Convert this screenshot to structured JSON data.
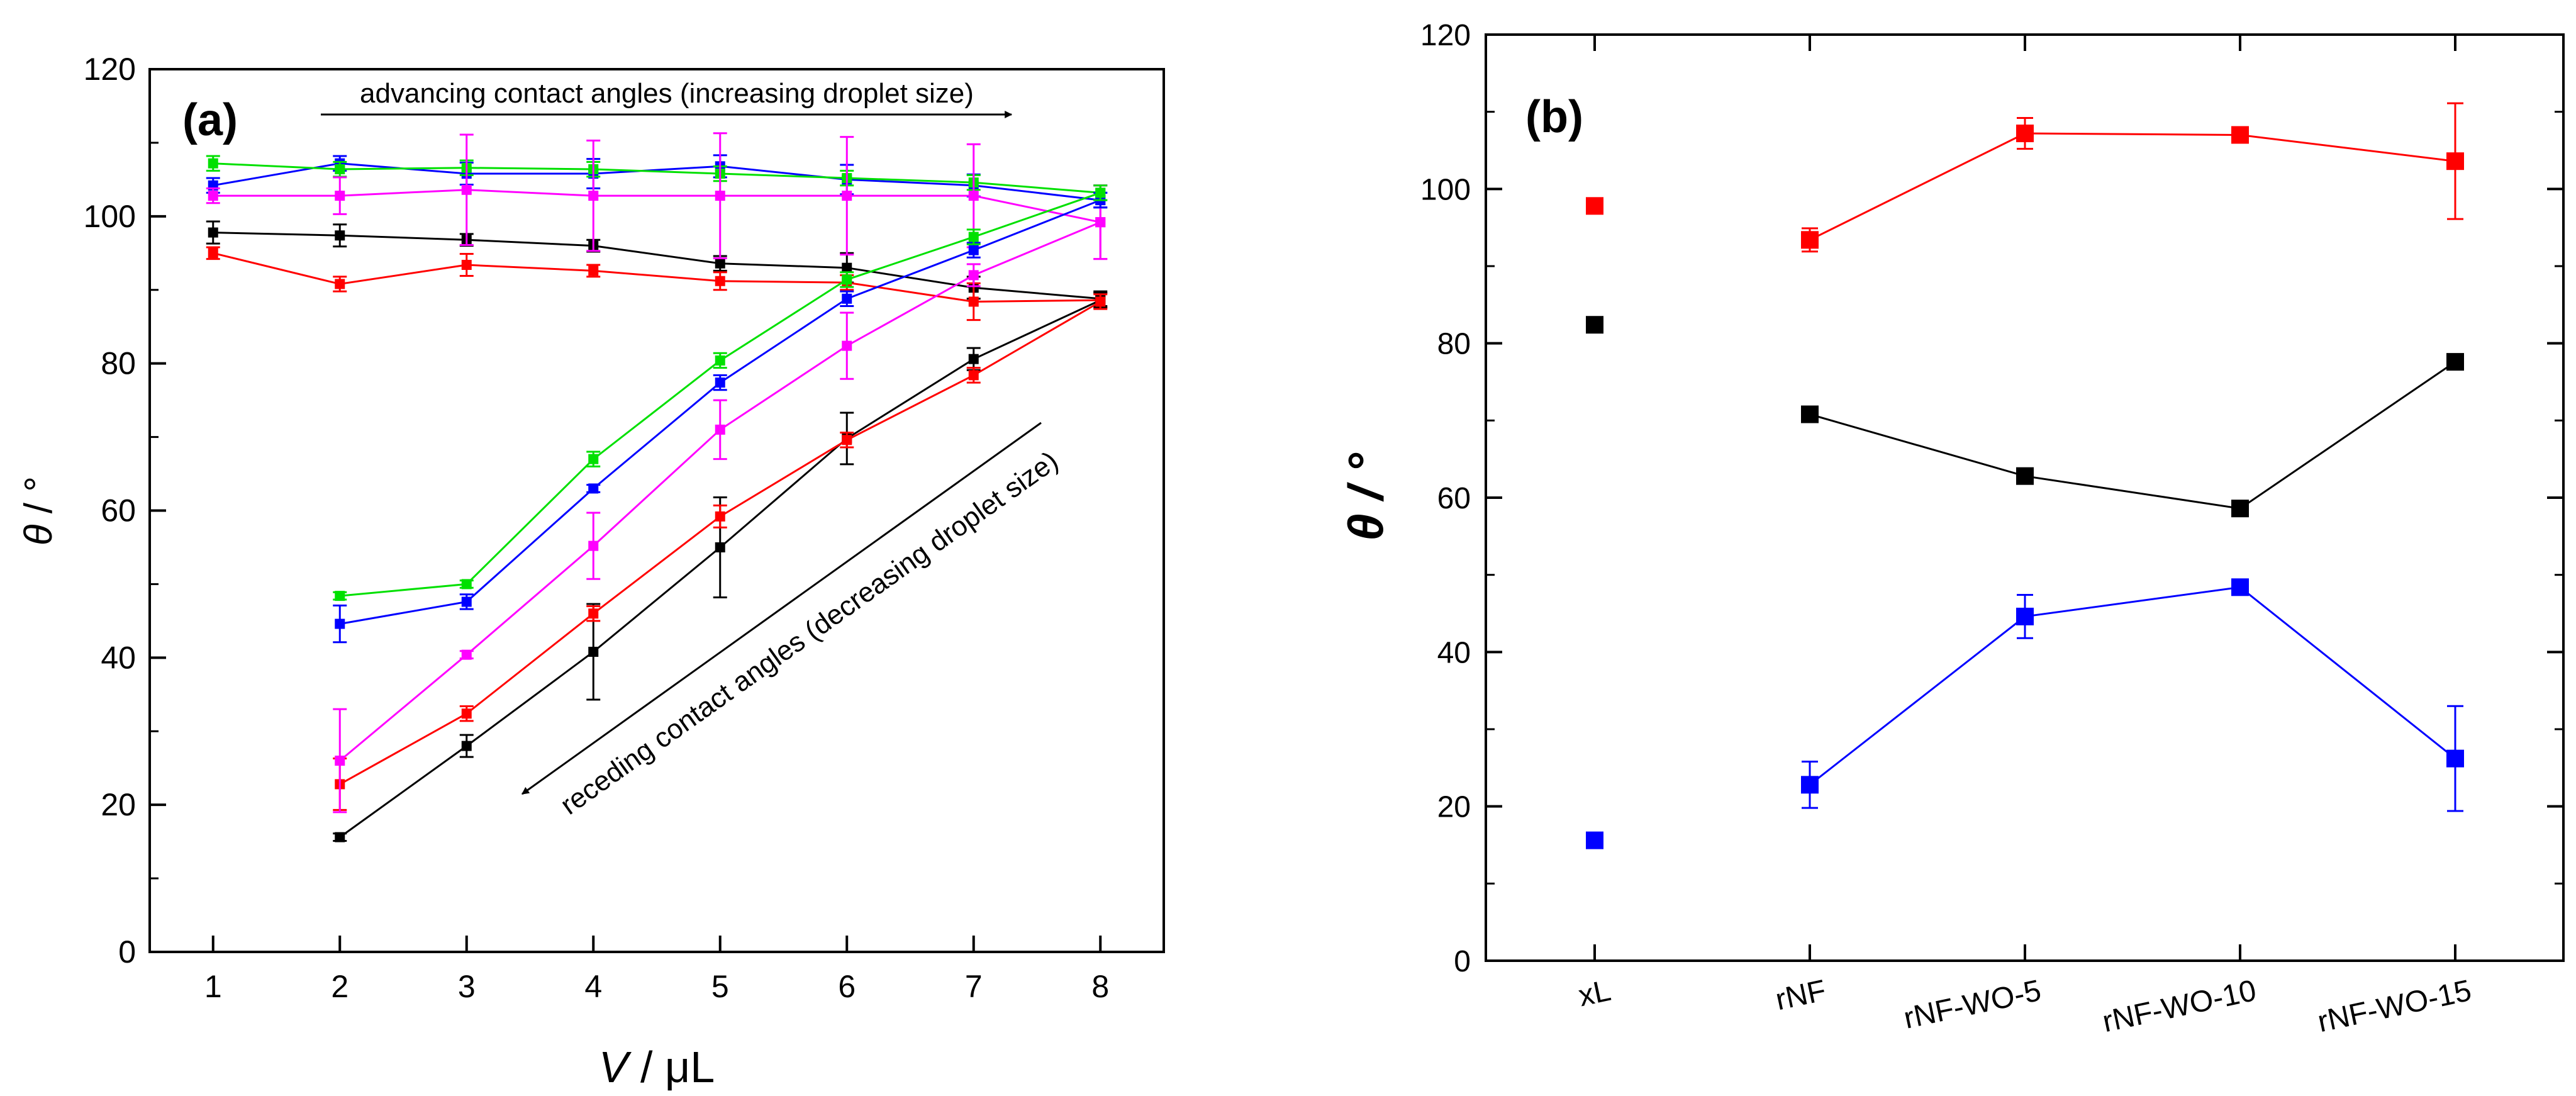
{
  "chart_data": [
    {
      "panel": "a",
      "type": "line",
      "panel_label": "(a)",
      "title": "",
      "xlabel_italic": "V",
      "xlabel_rest": " / μL",
      "ylabel_italic": "θ",
      "ylabel_rest": " / °",
      "xlim": [
        0.5,
        8.5
      ],
      "ylim": [
        0,
        120
      ],
      "x_ticks": [
        "1",
        "2",
        "3",
        "4",
        "5",
        "6",
        "7",
        "8"
      ],
      "y_ticks": [
        "0",
        "20",
        "40",
        "60",
        "80",
        "100",
        "120"
      ],
      "grid": false,
      "annotations": {
        "advancing": "advancing contact angles (increasing droplet size)",
        "receding": "receding contact angles (decreasing droplet size)"
      },
      "series": [
        {
          "name": "black advancing",
          "color": "#000000",
          "x": [
            1,
            2,
            3,
            4,
            5,
            6,
            7,
            8
          ],
          "values": [
            97.8,
            97.4,
            96.8,
            96.0,
            93.6,
            93.0,
            90.3,
            88.8
          ],
          "err": [
            1.5,
            1.5,
            0.8,
            0.8,
            1.0,
            2.0,
            1.5,
            1.0
          ]
        },
        {
          "name": "red advancing",
          "color": "#ff0000",
          "x": [
            1,
            2,
            3,
            4,
            5,
            6,
            7,
            8
          ],
          "values": [
            95.0,
            90.8,
            93.4,
            92.6,
            91.2,
            91.0,
            88.4,
            88.6
          ],
          "err": [
            0.8,
            1.0,
            1.5,
            0.8,
            1.2,
            1.0,
            2.5,
            1.0
          ]
        },
        {
          "name": "blue advancing",
          "color": "#0000ff",
          "x": [
            1,
            2,
            3,
            4,
            5,
            6,
            7,
            8
          ],
          "values": [
            104.2,
            107.2,
            105.8,
            105.8,
            106.8,
            105.0,
            104.2,
            102.2
          ],
          "err": [
            1.0,
            1.0,
            1.5,
            2.0,
            1.5,
            2.0,
            1.5,
            1.0
          ]
        },
        {
          "name": "green advancing",
          "color": "#00e000",
          "x": [
            1,
            2,
            3,
            4,
            5,
            6,
            7,
            8
          ],
          "values": [
            107.2,
            106.4,
            106.6,
            106.4,
            105.8,
            105.2,
            104.6,
            103.2
          ],
          "err": [
            1.0,
            1.0,
            1.0,
            1.0,
            1.0,
            1.0,
            1.0,
            1.0
          ]
        },
        {
          "name": "magenta advancing",
          "color": "#ff00ff",
          "x": [
            1,
            2,
            3,
            4,
            5,
            6,
            7,
            8
          ],
          "values": [
            102.8,
            102.8,
            103.6,
            102.8,
            102.8,
            102.8,
            102.8,
            99.2
          ],
          "err": [
            1.0,
            2.5,
            7.5,
            7.5,
            8.5,
            8.0,
            7.0,
            5.0
          ]
        },
        {
          "name": "black receding",
          "color": "#000000",
          "x": [
            2,
            3,
            4,
            5,
            6,
            7,
            8
          ],
          "values": [
            15.6,
            28.0,
            40.8,
            55.0,
            69.8,
            80.6,
            88.6
          ],
          "err": [
            0.5,
            1.5,
            6.5,
            6.8,
            3.5,
            1.5,
            1.0
          ]
        },
        {
          "name": "red receding",
          "color": "#ff0000",
          "x": [
            2,
            3,
            4,
            5,
            6,
            7,
            8
          ],
          "values": [
            22.8,
            32.4,
            46.0,
            59.2,
            69.6,
            78.4,
            88.4
          ],
          "err": [
            3.5,
            1.0,
            1.0,
            1.5,
            1.0,
            1.0,
            1.0
          ]
        },
        {
          "name": "magenta receding",
          "color": "#ff00ff",
          "x": [
            2,
            3,
            4,
            5,
            6,
            7,
            8
          ],
          "values": [
            26.0,
            40.4,
            55.2,
            71.0,
            82.4,
            92.0,
            99.2
          ],
          "err": [
            7.0,
            0.5,
            4.5,
            4.0,
            4.5,
            1.5,
            5.0
          ]
        },
        {
          "name": "blue receding",
          "color": "#0000ff",
          "x": [
            2,
            3,
            4,
            5,
            6,
            7,
            8
          ],
          "values": [
            44.6,
            47.6,
            63.0,
            77.4,
            88.8,
            95.4,
            102.2
          ],
          "err": [
            2.5,
            1.0,
            0.5,
            1.0,
            1.0,
            1.0,
            1.0
          ]
        },
        {
          "name": "green receding",
          "color": "#00e000",
          "x": [
            2,
            3,
            4,
            5,
            6,
            7,
            8
          ],
          "values": [
            48.4,
            50.0,
            67.0,
            80.4,
            91.4,
            97.2,
            103.2
          ],
          "err": [
            0.5,
            0.5,
            1.0,
            1.0,
            1.0,
            1.0,
            1.0
          ]
        }
      ]
    },
    {
      "panel": "b",
      "type": "line",
      "panel_label": "(b)",
      "title": "",
      "ylabel": "θ / °",
      "xlabel": "",
      "categories": [
        "xL",
        "rNF",
        "rNF-WO-5",
        "rNF-WO-10",
        "rNF-WO-15"
      ],
      "ylim": [
        0,
        120
      ],
      "y_ticks": [
        "0",
        "20",
        "40",
        "60",
        "80",
        "100",
        "120"
      ],
      "grid": false,
      "series": [
        {
          "name": "red",
          "color": "#ff0000",
          "values": [
            97.8,
            93.4,
            107.2,
            107.0,
            103.6
          ],
          "err": [
            0,
            1.5,
            2.0,
            0,
            7.5
          ],
          "connect_from": 1
        },
        {
          "name": "black",
          "color": "#000000",
          "values": [
            82.4,
            70.8,
            62.8,
            58.6,
            77.6
          ],
          "err": [
            0,
            0,
            0,
            0,
            0
          ],
          "connect_from": 1
        },
        {
          "name": "blue",
          "color": "#0000ff",
          "values": [
            15.6,
            22.8,
            44.6,
            48.4,
            26.2
          ],
          "err": [
            0,
            3.0,
            2.8,
            0,
            6.8
          ],
          "connect_from": 1
        }
      ]
    }
  ]
}
